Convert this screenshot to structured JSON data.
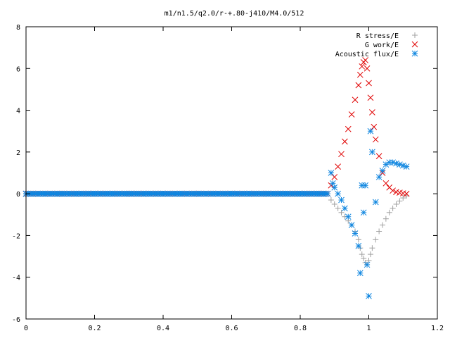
{
  "chart_data": {
    "type": "scatter",
    "title": "m1/n1.5/q2.0/r-+.80-j410/M4.0/512",
    "xlabel": "",
    "ylabel": "",
    "xlim": [
      0,
      1.2
    ],
    "ylim": [
      -6,
      8
    ],
    "x_ticks": [
      "0",
      "0.2",
      "0.4",
      "0.6",
      "0.8",
      "1",
      "1.2"
    ],
    "y_ticks": [
      "-6",
      "-4",
      "-2",
      "0",
      "2",
      "4",
      "6",
      "8"
    ],
    "grid": false,
    "legend_position": "top-right",
    "series": [
      {
        "name": "R stress/E",
        "marker": "plus",
        "color": "#a0a0a0",
        "points": [
          [
            0.0,
            0
          ],
          [
            0.1,
            0
          ],
          [
            0.2,
            0
          ],
          [
            0.3,
            0
          ],
          [
            0.4,
            0
          ],
          [
            0.5,
            0
          ],
          [
            0.6,
            0
          ],
          [
            0.7,
            0
          ],
          [
            0.8,
            0
          ],
          [
            0.88,
            0
          ],
          [
            0.89,
            -0.3
          ],
          [
            0.9,
            -0.5
          ],
          [
            0.91,
            -0.7
          ],
          [
            0.92,
            -0.9
          ],
          [
            0.93,
            -1.1
          ],
          [
            0.94,
            -1.3
          ],
          [
            0.95,
            -1.5
          ],
          [
            0.96,
            -1.8
          ],
          [
            0.97,
            -2.2
          ],
          [
            0.975,
            -2.6
          ],
          [
            0.98,
            -2.9
          ],
          [
            0.985,
            -3.1
          ],
          [
            0.99,
            -3.3
          ],
          [
            0.995,
            -3.4
          ],
          [
            1.0,
            -3.2
          ],
          [
            1.005,
            -2.9
          ],
          [
            1.01,
            -2.6
          ],
          [
            1.02,
            -2.2
          ],
          [
            1.03,
            -1.8
          ],
          [
            1.04,
            -1.5
          ],
          [
            1.05,
            -1.2
          ],
          [
            1.06,
            -0.9
          ],
          [
            1.07,
            -0.7
          ],
          [
            1.08,
            -0.5
          ],
          [
            1.09,
            -0.35
          ],
          [
            1.1,
            -0.2
          ],
          [
            1.11,
            -0.1
          ]
        ]
      },
      {
        "name": "G work/E",
        "marker": "cross",
        "color": "#e00000",
        "points": [
          [
            0.0,
            0
          ],
          [
            0.1,
            0
          ],
          [
            0.2,
            0
          ],
          [
            0.3,
            0
          ],
          [
            0.4,
            0
          ],
          [
            0.5,
            0
          ],
          [
            0.6,
            0
          ],
          [
            0.7,
            0
          ],
          [
            0.8,
            0
          ],
          [
            0.88,
            0
          ],
          [
            0.89,
            0.4
          ],
          [
            0.9,
            0.8
          ],
          [
            0.91,
            1.3
          ],
          [
            0.92,
            1.9
          ],
          [
            0.93,
            2.5
          ],
          [
            0.94,
            3.1
          ],
          [
            0.95,
            3.8
          ],
          [
            0.96,
            4.5
          ],
          [
            0.97,
            5.2
          ],
          [
            0.975,
            5.7
          ],
          [
            0.98,
            6.1
          ],
          [
            0.985,
            6.3
          ],
          [
            0.99,
            6.4
          ],
          [
            0.995,
            6.0
          ],
          [
            1.0,
            5.3
          ],
          [
            1.005,
            4.6
          ],
          [
            1.01,
            3.9
          ],
          [
            1.015,
            3.2
          ],
          [
            1.02,
            2.6
          ],
          [
            1.03,
            1.8
          ],
          [
            1.04,
            1.0
          ],
          [
            1.05,
            0.5
          ],
          [
            1.06,
            0.3
          ],
          [
            1.07,
            0.15
          ],
          [
            1.08,
            0.08
          ],
          [
            1.09,
            0.05
          ],
          [
            1.1,
            0.02
          ],
          [
            1.11,
            0.0
          ]
        ]
      },
      {
        "name": "Acoustic flux/E",
        "marker": "star",
        "color": "#0f86e0",
        "points": [
          [
            0.0,
            0
          ],
          [
            0.05,
            0
          ],
          [
            0.1,
            0
          ],
          [
            0.15,
            0
          ],
          [
            0.2,
            0
          ],
          [
            0.25,
            0
          ],
          [
            0.3,
            0
          ],
          [
            0.35,
            0
          ],
          [
            0.4,
            0
          ],
          [
            0.45,
            0
          ],
          [
            0.5,
            0
          ],
          [
            0.55,
            0
          ],
          [
            0.6,
            0
          ],
          [
            0.65,
            0
          ],
          [
            0.7,
            0
          ],
          [
            0.75,
            0
          ],
          [
            0.8,
            0
          ],
          [
            0.85,
            0
          ],
          [
            0.88,
            0
          ],
          [
            0.89,
            1.0
          ],
          [
            0.895,
            0.5
          ],
          [
            0.9,
            0.3
          ],
          [
            0.91,
            0.0
          ],
          [
            0.92,
            -0.3
          ],
          [
            0.93,
            -0.7
          ],
          [
            0.94,
            -1.1
          ],
          [
            0.95,
            -1.5
          ],
          [
            0.96,
            -1.9
          ],
          [
            0.97,
            -2.5
          ],
          [
            0.975,
            -3.8
          ],
          [
            0.98,
            0.4
          ],
          [
            0.985,
            -0.9
          ],
          [
            0.99,
            0.4
          ],
          [
            0.995,
            -3.4
          ],
          [
            1.0,
            -4.9
          ],
          [
            1.005,
            3.0
          ],
          [
            1.01,
            2.0
          ],
          [
            1.02,
            -0.4
          ],
          [
            1.03,
            0.8
          ],
          [
            1.04,
            1.1
          ],
          [
            1.05,
            1.4
          ],
          [
            1.06,
            1.5
          ],
          [
            1.07,
            1.5
          ],
          [
            1.08,
            1.45
          ],
          [
            1.09,
            1.4
          ],
          [
            1.1,
            1.35
          ],
          [
            1.11,
            1.3
          ]
        ]
      }
    ]
  }
}
